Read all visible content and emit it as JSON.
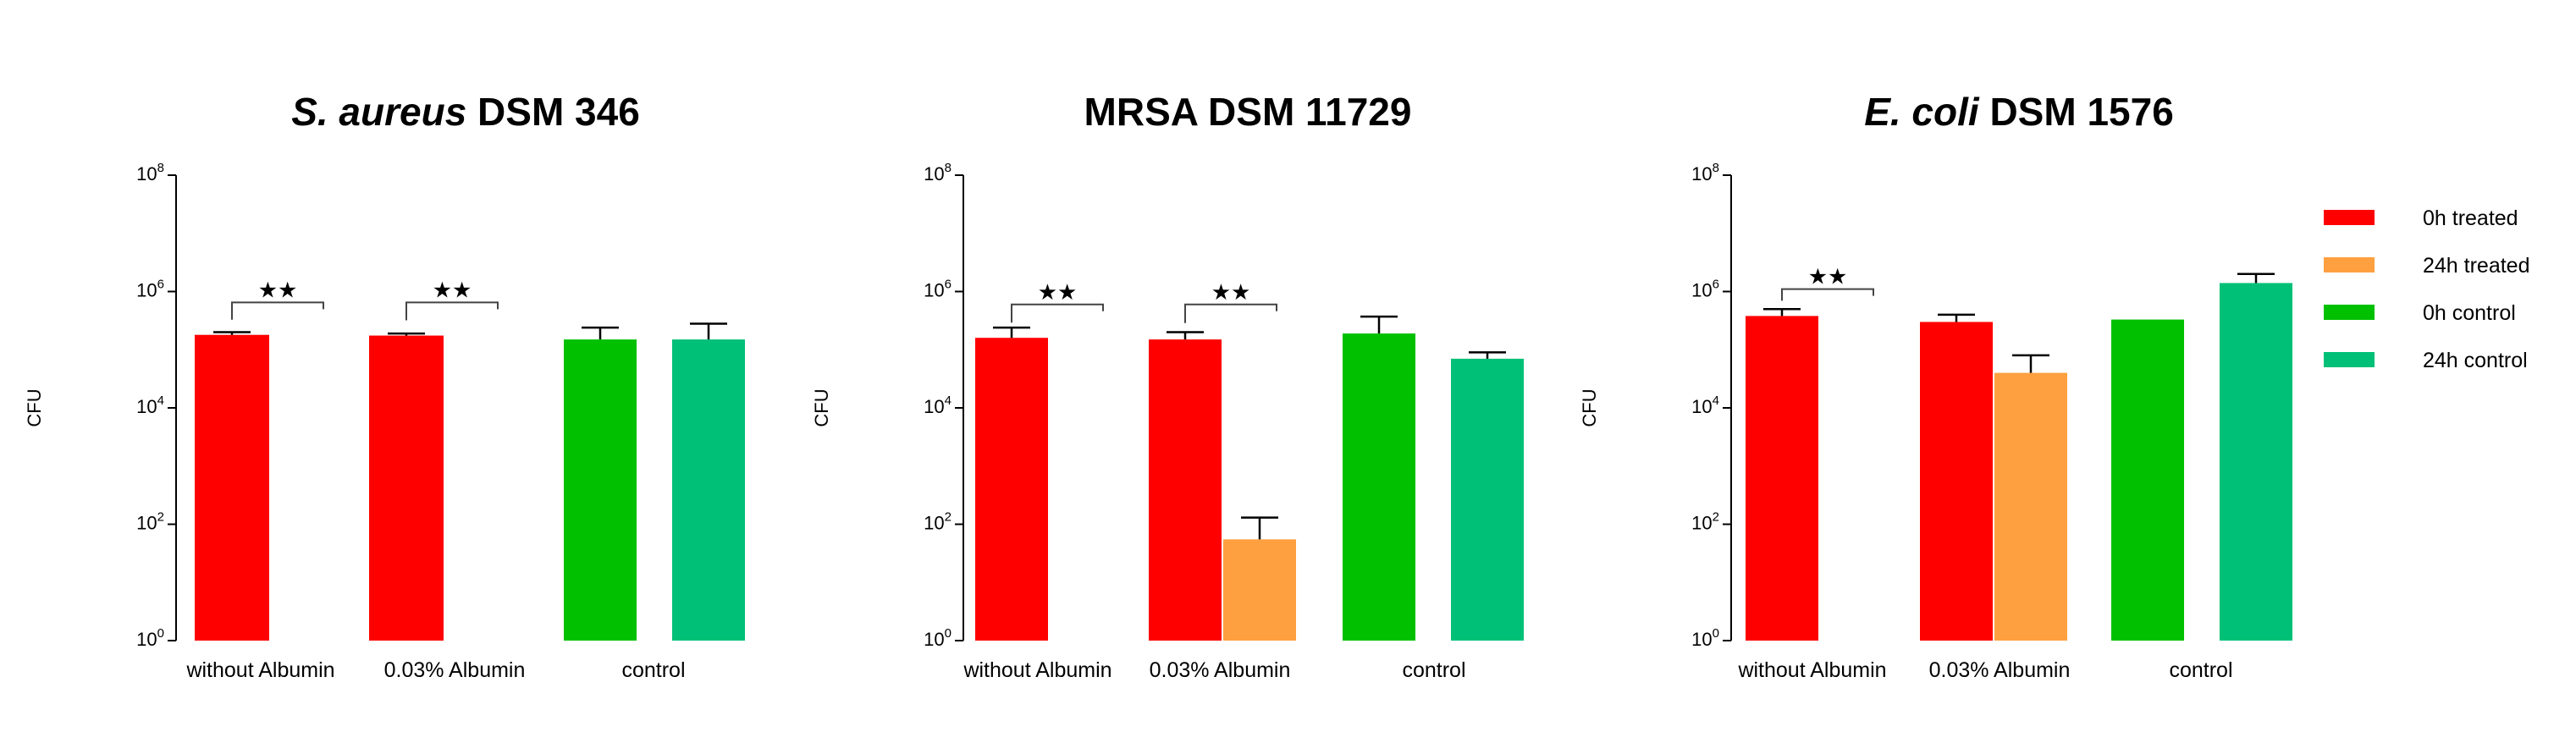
{
  "chart_data": [
    {
      "type": "bar",
      "title": "S. aureus DSM 346",
      "title_parts": [
        {
          "text": "S. aureus",
          "italic": true
        },
        {
          "text": " DSM 346",
          "italic": false
        }
      ],
      "ylabel": "CFU",
      "yscale": "log10",
      "ylim": [
        1,
        100000000
      ],
      "yticks": [
        {
          "base": "10",
          "exp": "0"
        },
        {
          "base": "10",
          "exp": "2"
        },
        {
          "base": "10",
          "exp": "4"
        },
        {
          "base": "10",
          "exp": "6"
        },
        {
          "base": "10",
          "exp": "8"
        }
      ],
      "categories": [
        "without Albumin",
        "0.03% Albumin",
        "control"
      ],
      "bars": [
        {
          "series": "0h treated",
          "category": 0,
          "value": 180000,
          "error": 20000
        },
        {
          "series": "0h treated",
          "category": 1,
          "value": 175000,
          "error": 15000
        },
        {
          "series": "0h control",
          "category": 2,
          "value": 150000,
          "error": 90000
        },
        {
          "series": "24h control",
          "category": 2,
          "value": 150000,
          "error": 130000
        }
      ],
      "significance": [
        {
          "category": 0,
          "label": "★★",
          "value": 650000
        },
        {
          "category": 1,
          "label": "★★",
          "value": 650000
        }
      ]
    },
    {
      "type": "bar",
      "title": "MRSA  DSM 11729",
      "title_parts": [
        {
          "text": "MRSA  DSM 11729",
          "italic": false
        }
      ],
      "ylabel": "CFU",
      "yscale": "log10",
      "ylim": [
        1,
        100000000
      ],
      "yticks": [
        {
          "base": "10",
          "exp": "0"
        },
        {
          "base": "10",
          "exp": "2"
        },
        {
          "base": "10",
          "exp": "4"
        },
        {
          "base": "10",
          "exp": "6"
        },
        {
          "base": "10",
          "exp": "8"
        }
      ],
      "categories": [
        "without Albumin",
        "0.03% Albumin",
        "control"
      ],
      "bars": [
        {
          "series": "0h treated",
          "category": 0,
          "value": 160000,
          "error": 80000
        },
        {
          "series": "0h treated",
          "category": 1,
          "value": 150000,
          "error": 50000
        },
        {
          "series": "24h treated",
          "category": 1,
          "value": 55,
          "error": 75
        },
        {
          "series": "0h control",
          "category": 2,
          "value": 190000,
          "error": 180000
        },
        {
          "series": "24h control",
          "category": 2,
          "value": 70000,
          "error": 20000
        }
      ],
      "significance": [
        {
          "category": 0,
          "label": "★★",
          "value": 600000
        },
        {
          "category": 1,
          "label": "★★",
          "value": 600000
        }
      ]
    },
    {
      "type": "bar",
      "title": "E. coli DSM 1576",
      "title_parts": [
        {
          "text": "E. coli",
          "italic": true
        },
        {
          "text": " DSM 1576",
          "italic": false
        }
      ],
      "ylabel": "CFU",
      "yscale": "log10",
      "ylim": [
        1,
        100000000
      ],
      "yticks": [
        {
          "base": "10",
          "exp": "0"
        },
        {
          "base": "10",
          "exp": "2"
        },
        {
          "base": "10",
          "exp": "4"
        },
        {
          "base": "10",
          "exp": "6"
        },
        {
          "base": "10",
          "exp": "8"
        }
      ],
      "categories": [
        "without Albumin",
        "0.03% Albumin",
        "control"
      ],
      "bars": [
        {
          "series": "0h treated",
          "category": 0,
          "value": 380000,
          "error": 120000
        },
        {
          "series": "0h treated",
          "category": 1,
          "value": 300000,
          "error": 100000
        },
        {
          "series": "24h treated",
          "category": 1,
          "value": 40000,
          "error": 40000
        },
        {
          "series": "0h control",
          "category": 2,
          "value": 330000,
          "error": 0
        },
        {
          "series": "24h control",
          "category": 2,
          "value": 1400000,
          "error": 600000
        }
      ],
      "significance": [
        {
          "category": 0,
          "label": "★★",
          "value": 1100000
        }
      ]
    }
  ],
  "legend": {
    "position": "right",
    "items": [
      {
        "label": "0h treated",
        "color": "#fe0000"
      },
      {
        "label": "24h treated",
        "color": "#fea040"
      },
      {
        "label": "0h control",
        "color": "#00c000"
      },
      {
        "label": "24h control",
        "color": "#00c077"
      }
    ]
  },
  "colors": {
    "0h treated": "#fe0000",
    "24h treated": "#fea040",
    "0h control": "#00c000",
    "24h control": "#00c077",
    "axis": "#000000",
    "error": "#000000",
    "bracket": "#444444"
  }
}
